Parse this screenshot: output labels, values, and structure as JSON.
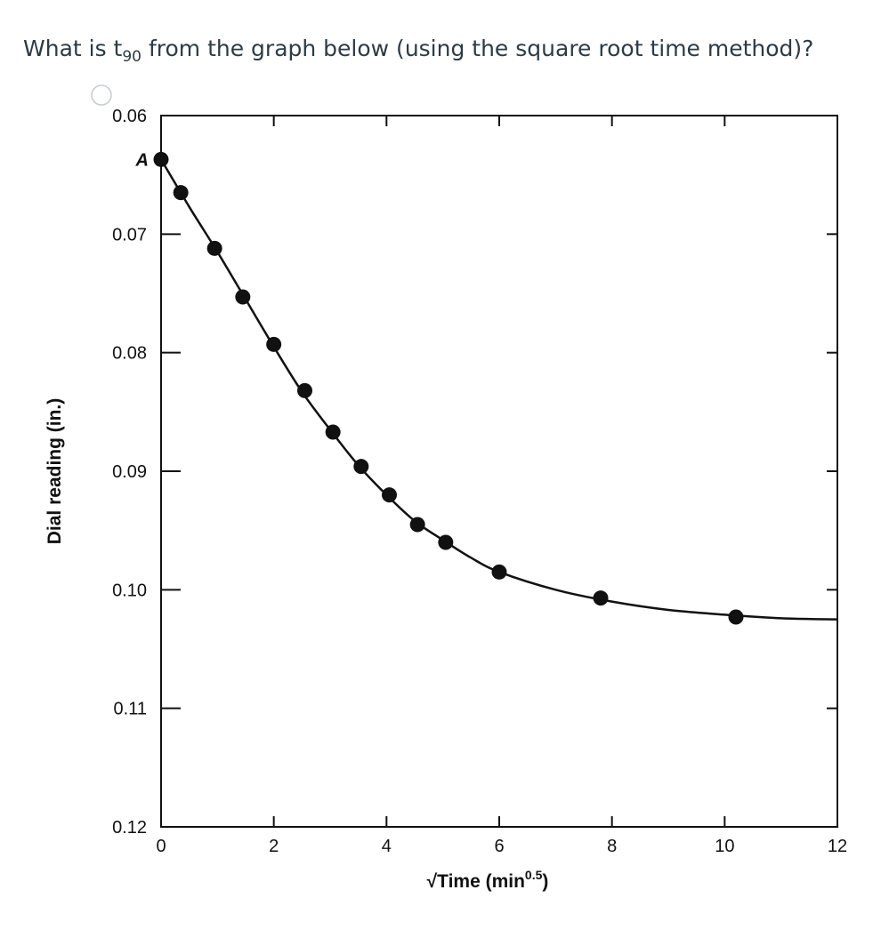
{
  "question": {
    "text_before": "What is t",
    "subscript": "90",
    "text_after": " from the graph below (using the square root time method)?"
  },
  "chart_data": {
    "type": "scatter",
    "title": "",
    "xlabel": "√Time (min",
    "xlabel_superscript": "0.5",
    "xlabel_suffix": ")",
    "ylabel": "Dial reading (in.)",
    "xlim": [
      0,
      12
    ],
    "ylim": [
      0.06,
      0.12
    ],
    "y_inverted": true,
    "x_ticks": [
      "0",
      "2",
      "4",
      "6",
      "8",
      "10",
      "12"
    ],
    "x_tick_values": [
      0,
      2,
      4,
      6,
      8,
      10,
      12
    ],
    "y_ticks": [
      "0.06",
      "0.07",
      "0.08",
      "0.09",
      "0.10",
      "0.11",
      "0.12"
    ],
    "y_tick_values": [
      0.06,
      0.07,
      0.08,
      0.09,
      0.1,
      0.11,
      0.12
    ],
    "grid": false,
    "annotation": {
      "text": "A",
      "x": 0,
      "y": 0.0637
    },
    "series": [
      {
        "points": [
          [
            0.0,
            0.0637
          ],
          [
            0.35,
            0.0665
          ],
          [
            0.95,
            0.0712
          ],
          [
            1.45,
            0.0753
          ],
          [
            2.0,
            0.0793
          ],
          [
            2.55,
            0.0832
          ],
          [
            3.05,
            0.0867
          ],
          [
            3.55,
            0.0896
          ],
          [
            4.05,
            0.092
          ],
          [
            4.55,
            0.0945
          ],
          [
            5.05,
            0.096
          ],
          [
            6.0,
            0.0985
          ],
          [
            7.8,
            0.1007
          ],
          [
            10.2,
            0.1023
          ]
        ],
        "curve": [
          [
            0.0,
            0.0637
          ],
          [
            0.5,
            0.0677
          ],
          [
            1.0,
            0.0715
          ],
          [
            1.5,
            0.0755
          ],
          [
            2.0,
            0.0795
          ],
          [
            2.5,
            0.0833
          ],
          [
            3.0,
            0.0865
          ],
          [
            3.5,
            0.0895
          ],
          [
            4.0,
            0.092
          ],
          [
            4.5,
            0.0942
          ],
          [
            5.0,
            0.0958
          ],
          [
            5.5,
            0.0973
          ],
          [
            6.0,
            0.0985
          ],
          [
            7.0,
            0.1
          ],
          [
            8.0,
            0.101
          ],
          [
            9.0,
            0.1017
          ],
          [
            10.0,
            0.1021
          ],
          [
            11.0,
            0.1024
          ],
          [
            12.0,
            0.1025
          ]
        ]
      }
    ]
  }
}
